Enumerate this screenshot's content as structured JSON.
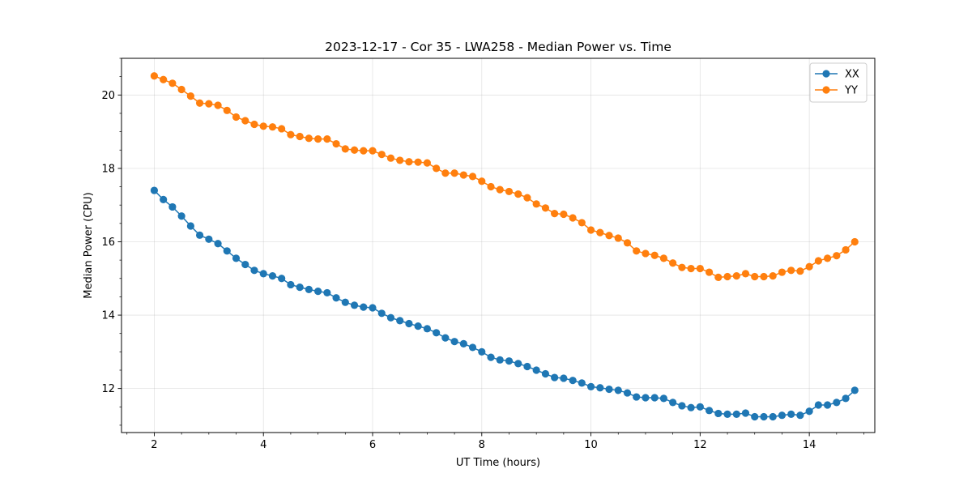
{
  "chart_data": {
    "type": "line",
    "title": "2023-12-17 - Cor 35 - LWA258 - Median Power vs. Time",
    "xlabel": "UT Time (hours)",
    "ylabel": "Median Power (CPU)",
    "xlim": [
      1.4,
      15.2
    ],
    "ylim": [
      10.8,
      21.0
    ],
    "xticks": [
      2,
      4,
      6,
      8,
      10,
      12,
      14
    ],
    "yticks": [
      12,
      14,
      16,
      18,
      20
    ],
    "xtick_labels": [
      "2",
      "4",
      "6",
      "8",
      "10",
      "12",
      "14"
    ],
    "ytick_labels": [
      "12",
      "14",
      "16",
      "18",
      "20"
    ],
    "grid": true,
    "legend_position": "top-right",
    "x": [
      2.0,
      2.167,
      2.333,
      2.5,
      2.667,
      2.833,
      3.0,
      3.167,
      3.333,
      3.5,
      3.667,
      3.833,
      4.0,
      4.167,
      4.333,
      4.5,
      4.667,
      4.833,
      5.0,
      5.167,
      5.333,
      5.5,
      5.667,
      5.833,
      6.0,
      6.167,
      6.333,
      6.5,
      6.667,
      6.833,
      7.0,
      7.167,
      7.333,
      7.5,
      7.667,
      7.833,
      8.0,
      8.167,
      8.333,
      8.5,
      8.667,
      8.833,
      9.0,
      9.167,
      9.333,
      9.5,
      9.667,
      9.833,
      10.0,
      10.167,
      10.333,
      10.5,
      10.667,
      10.833,
      11.0,
      11.167,
      11.333,
      11.5,
      11.667,
      11.833,
      12.0,
      12.167,
      12.333,
      12.5,
      12.667,
      12.833,
      13.0,
      13.167,
      13.333,
      13.5,
      13.667,
      13.833,
      14.0,
      14.167,
      14.333,
      14.5,
      14.667,
      14.833
    ],
    "series": [
      {
        "name": "XX",
        "color": "#1f77b4",
        "values": [
          17.4,
          17.15,
          16.95,
          16.7,
          16.43,
          16.18,
          16.07,
          15.95,
          15.75,
          15.55,
          15.38,
          15.22,
          15.13,
          15.07,
          15.0,
          14.83,
          14.76,
          14.7,
          14.65,
          14.61,
          14.47,
          14.35,
          14.27,
          14.22,
          14.2,
          14.05,
          13.93,
          13.85,
          13.77,
          13.7,
          13.63,
          13.52,
          13.38,
          13.28,
          13.22,
          13.12,
          13.0,
          12.85,
          12.78,
          12.75,
          12.68,
          12.6,
          12.5,
          12.4,
          12.3,
          12.28,
          12.22,
          12.15,
          12.05,
          12.02,
          11.98,
          11.95,
          11.88,
          11.77,
          11.75,
          11.75,
          11.73,
          11.62,
          11.53,
          11.48,
          11.5,
          11.4,
          11.32,
          11.3,
          11.3,
          11.33,
          11.23,
          11.23,
          11.23,
          11.27,
          11.3,
          11.27,
          11.38,
          11.55,
          11.55,
          11.62,
          11.73,
          11.95
        ]
      },
      {
        "name": "YY",
        "color": "#ff7f0e",
        "values": [
          20.52,
          20.42,
          20.32,
          20.15,
          19.97,
          19.78,
          19.76,
          19.72,
          19.58,
          19.4,
          19.3,
          19.2,
          19.15,
          19.13,
          19.08,
          18.92,
          18.87,
          18.82,
          18.8,
          18.8,
          18.67,
          18.53,
          18.5,
          18.48,
          18.48,
          18.38,
          18.28,
          18.22,
          18.18,
          18.17,
          18.15,
          18.0,
          17.87,
          17.87,
          17.82,
          17.78,
          17.65,
          17.5,
          17.42,
          17.37,
          17.3,
          17.2,
          17.03,
          16.92,
          16.77,
          16.75,
          16.65,
          16.52,
          16.32,
          16.25,
          16.17,
          16.1,
          15.97,
          15.75,
          15.68,
          15.63,
          15.55,
          15.42,
          15.3,
          15.27,
          15.27,
          15.17,
          15.03,
          15.05,
          15.07,
          15.13,
          15.05,
          15.05,
          15.07,
          15.17,
          15.22,
          15.2,
          15.32,
          15.48,
          15.55,
          15.62,
          15.78,
          16.0
        ]
      }
    ]
  }
}
